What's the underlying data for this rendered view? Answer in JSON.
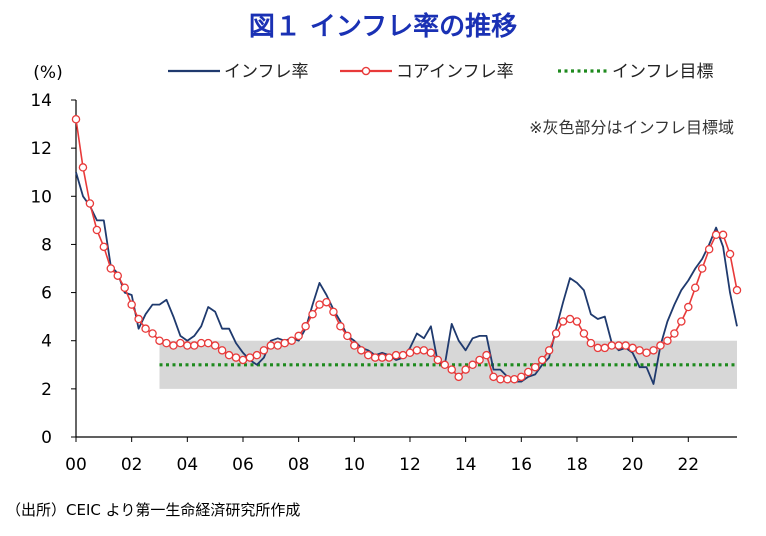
{
  "chart_data": {
    "type": "line",
    "title": "図１ インフレ率の推移",
    "ylabel": "(%)",
    "xlabel": "",
    "xlim": [
      2000,
      2023.75
    ],
    "ylim": [
      0,
      14
    ],
    "x_ticks": [
      2000,
      2002,
      2004,
      2006,
      2008,
      2010,
      2012,
      2014,
      2016,
      2018,
      2020,
      2022
    ],
    "x_tick_labels": [
      "00",
      "02",
      "04",
      "06",
      "08",
      "10",
      "12",
      "14",
      "16",
      "18",
      "20",
      "22"
    ],
    "y_ticks": [
      0,
      2,
      4,
      6,
      8,
      10,
      12,
      14
    ],
    "y_tick_labels": [
      "0",
      "2",
      "4",
      "6",
      "8",
      "10",
      "12",
      "14"
    ],
    "note": "※灰色部分はインフレ目標域",
    "source": "（出所）CEIC より第一生命経済研究所作成",
    "target_band": {
      "x_start": 2003.0,
      "x_end": 2023.75,
      "y_low": 2,
      "y_high": 4
    },
    "series": [
      {
        "name": "インフレ率",
        "color": "#1f3a6e",
        "style": "line",
        "x": [
          2000.0,
          2000.25,
          2000.5,
          2000.75,
          2001.0,
          2001.25,
          2001.5,
          2001.75,
          2002.0,
          2002.25,
          2002.5,
          2002.75,
          2003.0,
          2003.25,
          2003.5,
          2003.75,
          2004.0,
          2004.25,
          2004.5,
          2004.75,
          2005.0,
          2005.25,
          2005.5,
          2005.75,
          2006.0,
          2006.25,
          2006.5,
          2006.75,
          2007.0,
          2007.25,
          2007.5,
          2007.75,
          2008.0,
          2008.25,
          2008.5,
          2008.75,
          2009.0,
          2009.25,
          2009.5,
          2009.75,
          2010.0,
          2010.25,
          2010.5,
          2010.75,
          2011.0,
          2011.25,
          2011.5,
          2011.75,
          2012.0,
          2012.25,
          2012.5,
          2012.75,
          2013.0,
          2013.25,
          2013.5,
          2013.75,
          2014.0,
          2014.25,
          2014.5,
          2014.75,
          2015.0,
          2015.25,
          2015.5,
          2015.75,
          2016.0,
          2016.25,
          2016.5,
          2016.75,
          2017.0,
          2017.25,
          2017.5,
          2017.75,
          2018.0,
          2018.25,
          2018.5,
          2018.75,
          2019.0,
          2019.25,
          2019.5,
          2019.75,
          2020.0,
          2020.25,
          2020.5,
          2020.75,
          2021.0,
          2021.25,
          2021.5,
          2021.75,
          2022.0,
          2022.25,
          2022.5,
          2022.75,
          2023.0,
          2023.25,
          2023.5,
          2023.75
        ],
        "values": [
          11.0,
          10.0,
          9.6,
          9.0,
          9.0,
          7.1,
          6.8,
          6.0,
          5.9,
          4.5,
          5.1,
          5.5,
          5.5,
          5.7,
          5.0,
          4.2,
          4.0,
          4.2,
          4.6,
          5.4,
          5.2,
          4.5,
          4.5,
          3.9,
          3.5,
          3.2,
          3.0,
          3.3,
          4.0,
          4.1,
          4.0,
          4.1,
          4.0,
          4.5,
          5.5,
          6.4,
          5.9,
          5.3,
          4.8,
          4.2,
          4.0,
          3.7,
          3.6,
          3.4,
          3.5,
          3.4,
          3.2,
          3.3,
          3.7,
          4.3,
          4.1,
          4.6,
          3.1,
          3.0,
          4.7,
          4.0,
          3.6,
          4.1,
          4.2,
          4.2,
          2.8,
          2.8,
          2.5,
          2.3,
          2.3,
          2.5,
          2.6,
          3.0,
          3.3,
          4.5,
          5.6,
          6.6,
          6.4,
          6.1,
          5.1,
          4.9,
          5.0,
          3.9,
          3.6,
          3.7,
          3.5,
          2.9,
          2.9,
          2.2,
          3.8,
          4.8,
          5.5,
          6.1,
          6.5,
          7.0,
          7.4,
          8.0,
          8.7,
          7.9,
          6.0,
          4.6
        ]
      },
      {
        "name": "コアインフレ率",
        "color": "#e83a3a",
        "style": "line-markers",
        "x": [
          2000.0,
          2000.25,
          2000.5,
          2000.75,
          2001.0,
          2001.25,
          2001.5,
          2001.75,
          2002.0,
          2002.25,
          2002.5,
          2002.75,
          2003.0,
          2003.25,
          2003.5,
          2003.75,
          2004.0,
          2004.25,
          2004.5,
          2004.75,
          2005.0,
          2005.25,
          2005.5,
          2005.75,
          2006.0,
          2006.25,
          2006.5,
          2006.75,
          2007.0,
          2007.25,
          2007.5,
          2007.75,
          2008.0,
          2008.25,
          2008.5,
          2008.75,
          2009.0,
          2009.25,
          2009.5,
          2009.75,
          2010.0,
          2010.25,
          2010.5,
          2010.75,
          2011.0,
          2011.25,
          2011.5,
          2011.75,
          2012.0,
          2012.25,
          2012.5,
          2012.75,
          2013.0,
          2013.25,
          2013.5,
          2013.75,
          2014.0,
          2014.25,
          2014.5,
          2014.75,
          2015.0,
          2015.25,
          2015.5,
          2015.75,
          2016.0,
          2016.25,
          2016.5,
          2016.75,
          2017.0,
          2017.25,
          2017.5,
          2017.75,
          2018.0,
          2018.25,
          2018.5,
          2018.75,
          2019.0,
          2019.25,
          2019.5,
          2019.75,
          2020.0,
          2020.25,
          2020.5,
          2020.75,
          2021.0,
          2021.25,
          2021.5,
          2021.75,
          2022.0,
          2022.25,
          2022.5,
          2022.75,
          2023.0,
          2023.25,
          2023.5,
          2023.75
        ],
        "values": [
          13.2,
          11.2,
          9.7,
          8.6,
          7.9,
          7.0,
          6.7,
          6.2,
          5.5,
          4.9,
          4.5,
          4.3,
          4.0,
          3.9,
          3.8,
          3.9,
          3.8,
          3.8,
          3.9,
          3.9,
          3.8,
          3.6,
          3.4,
          3.3,
          3.2,
          3.3,
          3.4,
          3.6,
          3.8,
          3.8,
          3.9,
          4.0,
          4.2,
          4.6,
          5.1,
          5.5,
          5.6,
          5.2,
          4.6,
          4.2,
          3.8,
          3.6,
          3.4,
          3.3,
          3.3,
          3.3,
          3.4,
          3.4,
          3.5,
          3.6,
          3.6,
          3.5,
          3.2,
          3.0,
          2.8,
          2.5,
          2.8,
          3.0,
          3.2,
          3.4,
          2.5,
          2.4,
          2.4,
          2.4,
          2.5,
          2.7,
          2.9,
          3.2,
          3.6,
          4.3,
          4.8,
          4.9,
          4.8,
          4.3,
          3.9,
          3.7,
          3.7,
          3.8,
          3.8,
          3.8,
          3.7,
          3.6,
          3.5,
          3.6,
          3.8,
          4.0,
          4.3,
          4.8,
          5.4,
          6.2,
          7.0,
          7.8,
          8.4,
          8.4,
          7.6,
          6.1
        ]
      },
      {
        "name": "インフレ目標",
        "color": "#1e8a1e",
        "style": "dotted",
        "x": [
          2003.0,
          2023.75
        ],
        "values": [
          3,
          3
        ]
      }
    ]
  }
}
